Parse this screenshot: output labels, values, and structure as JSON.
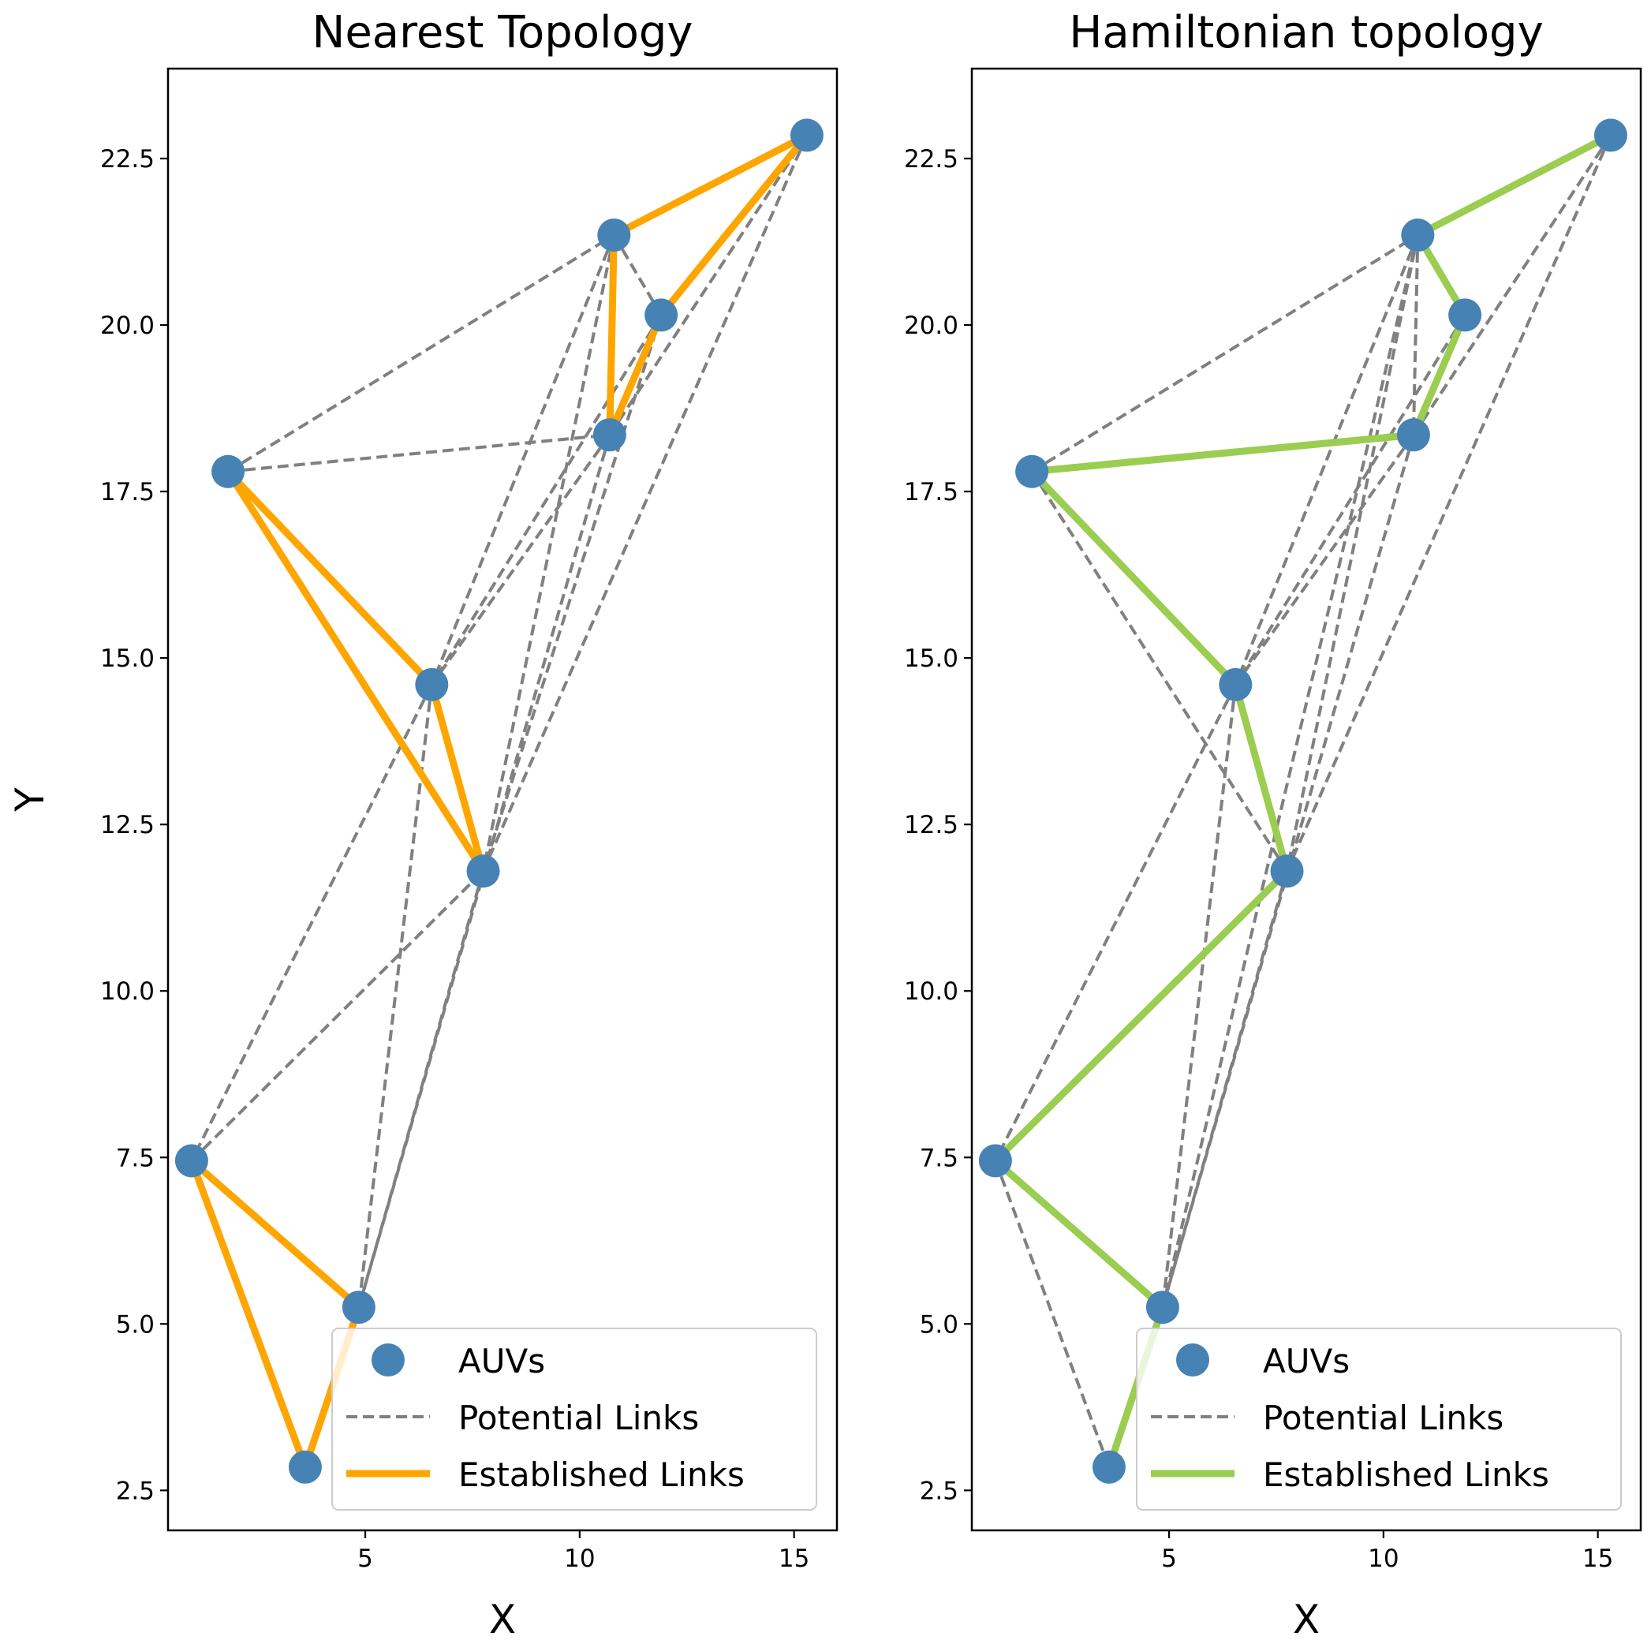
{
  "chart_data": [
    {
      "type": "scatter",
      "title": "Nearest Topology",
      "xlabel": "X",
      "ylabel": "Y",
      "xlim": [
        0.4,
        16.0
      ],
      "ylim": [
        1.9,
        23.85
      ],
      "xticks": [
        5,
        10,
        15
      ],
      "yticks": [
        2.5,
        5.0,
        7.5,
        10.0,
        12.5,
        15.0,
        17.5,
        20.0,
        22.5
      ],
      "grid": false,
      "legend_position": "lower-right",
      "legend": [
        "AUVs",
        "Potential Links",
        "Established Links"
      ],
      "colors": {
        "nodes": "#4682b4",
        "potential": "#808080",
        "established": "#ffa500"
      },
      "nodes": [
        {
          "x": 15.3,
          "y": 22.85
        },
        {
          "x": 10.8,
          "y": 21.35
        },
        {
          "x": 11.9,
          "y": 20.15
        },
        {
          "x": 10.7,
          "y": 18.35
        },
        {
          "x": 1.8,
          "y": 17.8
        },
        {
          "x": 6.55,
          "y": 14.6
        },
        {
          "x": 7.75,
          "y": 11.8
        },
        {
          "x": 0.95,
          "y": 7.45
        },
        {
          "x": 4.85,
          "y": 5.25
        },
        {
          "x": 3.6,
          "y": 2.85
        }
      ],
      "potential_links": [
        [
          4,
          1
        ],
        [
          4,
          3
        ],
        [
          1,
          2
        ],
        [
          1,
          6
        ],
        [
          1,
          5
        ],
        [
          2,
          6
        ],
        [
          2,
          5
        ],
        [
          3,
          5
        ],
        [
          3,
          8
        ],
        [
          0,
          6
        ],
        [
          0,
          3
        ],
        [
          0,
          2
        ],
        [
          5,
          7
        ],
        [
          5,
          8
        ],
        [
          7,
          6
        ],
        [
          6,
          8
        ]
      ],
      "established_links": [
        [
          0,
          1
        ],
        [
          1,
          3
        ],
        [
          3,
          2
        ],
        [
          2,
          0
        ],
        [
          4,
          5
        ],
        [
          5,
          6
        ],
        [
          6,
          4
        ],
        [
          7,
          8
        ],
        [
          8,
          9
        ],
        [
          9,
          7
        ]
      ]
    },
    {
      "type": "scatter",
      "title": "Hamiltonian topology",
      "xlabel": "X",
      "ylabel": "",
      "xlim": [
        0.4,
        16.0
      ],
      "ylim": [
        1.9,
        23.85
      ],
      "xticks": [
        5,
        10,
        15
      ],
      "yticks": [
        2.5,
        5.0,
        7.5,
        10.0,
        12.5,
        15.0,
        17.5,
        20.0,
        22.5
      ],
      "grid": false,
      "legend_position": "lower-right",
      "legend": [
        "AUVs",
        "Potential Links",
        "Established Links"
      ],
      "colors": {
        "nodes": "#4682b4",
        "potential": "#808080",
        "established": "#9acd50"
      },
      "nodes": [
        {
          "x": 15.3,
          "y": 22.85
        },
        {
          "x": 10.8,
          "y": 21.35
        },
        {
          "x": 11.9,
          "y": 20.15
        },
        {
          "x": 10.7,
          "y": 18.35
        },
        {
          "x": 1.8,
          "y": 17.8
        },
        {
          "x": 6.55,
          "y": 14.6
        },
        {
          "x": 7.75,
          "y": 11.8
        },
        {
          "x": 0.95,
          "y": 7.45
        },
        {
          "x": 4.85,
          "y": 5.25
        },
        {
          "x": 3.6,
          "y": 2.85
        }
      ],
      "potential_links": [
        [
          4,
          1
        ],
        [
          4,
          6
        ],
        [
          1,
          3
        ],
        [
          1,
          5
        ],
        [
          1,
          6
        ],
        [
          1,
          8
        ],
        [
          0,
          3
        ],
        [
          0,
          6
        ],
        [
          3,
          5
        ],
        [
          3,
          8
        ],
        [
          2,
          5
        ],
        [
          5,
          7
        ],
        [
          5,
          8
        ],
        [
          7,
          9
        ],
        [
          6,
          8
        ]
      ],
      "established_links": [
        [
          0,
          1
        ],
        [
          1,
          2
        ],
        [
          2,
          3
        ],
        [
          3,
          4
        ],
        [
          4,
          5
        ],
        [
          5,
          6
        ],
        [
          6,
          7
        ],
        [
          7,
          8
        ],
        [
          8,
          9
        ]
      ]
    }
  ]
}
